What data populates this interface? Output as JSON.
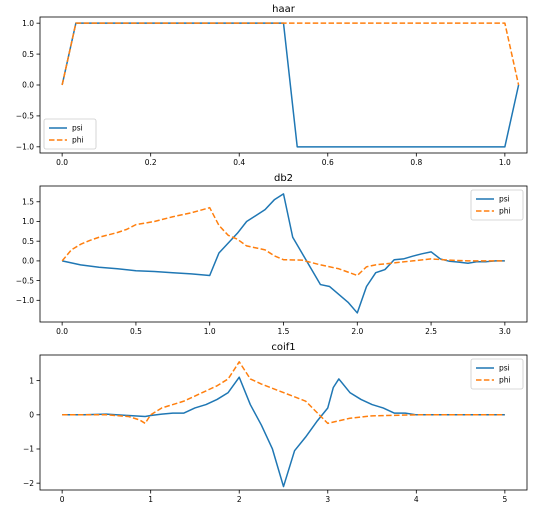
{
  "chart_data": [
    {
      "type": "line",
      "title": "haar",
      "xlim": [
        -0.05,
        1.05
      ],
      "ylim": [
        -1.1,
        1.1
      ],
      "xticks": [
        0.0,
        0.2,
        0.4,
        0.6,
        0.8,
        1.0
      ],
      "xtick_labels": [
        "0.0",
        "0.2",
        "0.4",
        "0.6",
        "0.8",
        "1.0"
      ],
      "yticks": [
        -1.0,
        -0.5,
        0.0,
        0.5,
        1.0
      ],
      "ytick_labels": [
        "−1.0",
        "−0.5",
        "0.0",
        "0.5",
        "1.0"
      ],
      "legend_position": "lower-left",
      "series": [
        {
          "name": "psi",
          "color": "#1f77b4",
          "style": "solid",
          "x": [
            0.0,
            0.031,
            0.5,
            0.531,
            1.0,
            1.031
          ],
          "y": [
            0.0,
            1.0,
            1.0,
            -1.0,
            -1.0,
            0.0
          ]
        },
        {
          "name": "phi",
          "color": "#ff7f0e",
          "style": "dashed",
          "x": [
            0.0,
            0.031,
            1.0,
            1.031
          ],
          "y": [
            0.0,
            1.0,
            1.0,
            0.0
          ]
        }
      ]
    },
    {
      "type": "line",
      "title": "db2",
      "xlim": [
        -0.15,
        3.15
      ],
      "ylim": [
        -1.55,
        1.9
      ],
      "xticks": [
        0.0,
        0.5,
        1.0,
        1.5,
        2.0,
        2.5,
        3.0
      ],
      "xtick_labels": [
        "0.0",
        "0.5",
        "1.0",
        "1.5",
        "2.0",
        "2.5",
        "3.0"
      ],
      "yticks": [
        -1.0,
        -0.5,
        0.0,
        0.5,
        1.0,
        1.5
      ],
      "ytick_labels": [
        "−1.0",
        "−0.5",
        "0.0",
        "0.5",
        "1.0",
        "1.5"
      ],
      "legend_position": "top-right",
      "series": [
        {
          "name": "psi",
          "color": "#1f77b4",
          "style": "solid",
          "x": [
            0.0,
            0.125,
            0.25,
            0.375,
            0.5,
            0.625,
            0.75,
            0.875,
            1.0,
            1.0625,
            1.125,
            1.1875,
            1.25,
            1.3125,
            1.375,
            1.4375,
            1.5,
            1.5625,
            1.625,
            1.6875,
            1.75,
            1.8125,
            1.875,
            1.9375,
            2.0,
            2.0625,
            2.125,
            2.1875,
            2.25,
            2.3125,
            2.375,
            2.4375,
            2.5,
            2.5625,
            2.625,
            2.6875,
            2.75,
            2.8125,
            2.875,
            2.9375,
            3.0
          ],
          "y": [
            0.0,
            -0.1,
            -0.16,
            -0.2,
            -0.25,
            -0.27,
            -0.3,
            -0.33,
            -0.37,
            0.2,
            0.45,
            0.7,
            1.0,
            1.15,
            1.3,
            1.55,
            1.7,
            0.6,
            0.2,
            -0.2,
            -0.6,
            -0.65,
            -0.85,
            -1.05,
            -1.32,
            -0.65,
            -0.3,
            -0.22,
            0.03,
            0.05,
            0.12,
            0.18,
            0.23,
            0.05,
            -0.01,
            -0.03,
            -0.06,
            -0.02,
            -0.02,
            0.0,
            0.0
          ]
        },
        {
          "name": "phi",
          "color": "#ff7f0e",
          "style": "dashed",
          "x": [
            0.0,
            0.0625,
            0.125,
            0.1875,
            0.25,
            0.3125,
            0.375,
            0.4375,
            0.5,
            0.625,
            0.75,
            0.875,
            1.0,
            1.0625,
            1.125,
            1.1875,
            1.25,
            1.3125,
            1.375,
            1.4375,
            1.5,
            1.625,
            1.75,
            1.875,
            2.0,
            2.0625,
            2.125,
            2.25,
            2.375,
            2.5,
            2.625,
            2.75,
            2.875,
            3.0
          ],
          "y": [
            0.0,
            0.28,
            0.42,
            0.52,
            0.6,
            0.66,
            0.72,
            0.8,
            0.92,
            1.0,
            1.12,
            1.22,
            1.35,
            0.9,
            0.65,
            0.55,
            0.38,
            0.33,
            0.28,
            0.13,
            0.03,
            0.02,
            -0.1,
            -0.2,
            -0.37,
            -0.15,
            -0.1,
            -0.05,
            0.0,
            0.05,
            0.02,
            0.0,
            0.0,
            0.0
          ]
        }
      ]
    },
    {
      "type": "line",
      "title": "coif1",
      "xlim": [
        -0.25,
        5.25
      ],
      "ylim": [
        -2.2,
        1.75
      ],
      "xticks": [
        0,
        1,
        2,
        3,
        4,
        5
      ],
      "xtick_labels": [
        "0",
        "1",
        "2",
        "3",
        "4",
        "5"
      ],
      "yticks": [
        -2,
        -1,
        0,
        1
      ],
      "ytick_labels": [
        "−2",
        "−1",
        "0",
        "1"
      ],
      "legend_position": "top-right",
      "series": [
        {
          "name": "psi",
          "color": "#1f77b4",
          "style": "solid",
          "x": [
            0.0,
            0.25,
            0.5,
            0.75,
            0.9375,
            1.0,
            1.125,
            1.25,
            1.375,
            1.5,
            1.625,
            1.75,
            1.875,
            2.0,
            2.125,
            2.25,
            2.375,
            2.5,
            2.625,
            2.75,
            2.875,
            3.0,
            3.0625,
            3.125,
            3.25,
            3.375,
            3.5,
            3.625,
            3.75,
            3.875,
            4.0,
            4.5,
            5.0
          ],
          "y": [
            0.0,
            0.0,
            0.02,
            -0.02,
            -0.05,
            -0.02,
            0.02,
            0.05,
            0.05,
            0.2,
            0.3,
            0.45,
            0.65,
            1.1,
            0.3,
            -0.3,
            -1.0,
            -2.1,
            -1.05,
            -0.65,
            -0.2,
            0.2,
            0.8,
            1.05,
            0.65,
            0.45,
            0.3,
            0.2,
            0.05,
            0.05,
            0.0,
            0.0,
            0.0
          ]
        },
        {
          "name": "phi",
          "color": "#ff7f0e",
          "style": "dashed",
          "x": [
            0.0,
            0.5,
            0.75,
            0.875,
            0.9375,
            1.0,
            1.125,
            1.25,
            1.375,
            1.5,
            1.625,
            1.75,
            1.875,
            2.0,
            2.125,
            2.25,
            2.5,
            2.75,
            3.0,
            3.25,
            3.5,
            4.0,
            5.0
          ],
          "y": [
            0.0,
            0.0,
            -0.05,
            -0.15,
            -0.25,
            0.0,
            0.2,
            0.3,
            0.4,
            0.55,
            0.7,
            0.85,
            1.05,
            1.55,
            1.05,
            0.9,
            0.65,
            0.4,
            -0.25,
            -0.1,
            -0.03,
            0.0,
            0.0
          ]
        }
      ]
    }
  ]
}
